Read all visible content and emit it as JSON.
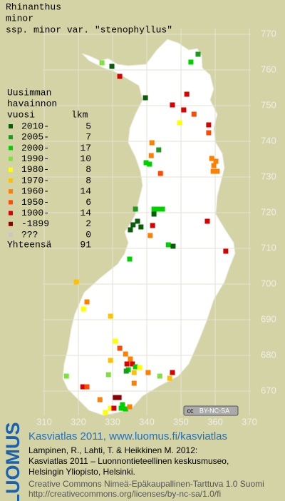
{
  "header": {
    "title_lines": [
      "Rhinanthus",
      "minor",
      "ssp. minor var. \"stenophyllus\""
    ]
  },
  "legend": {
    "heading_lines": [
      "Uusimman",
      "havainnon",
      "vuosi"
    ],
    "count_heading": "lkm",
    "rows": [
      {
        "label": "2010-",
        "count": 5,
        "color": "#0a5c0a"
      },
      {
        "label": "2005-",
        "count": 7,
        "color": "#1e9a1e"
      },
      {
        "label": "2000-",
        "count": 17,
        "color": "#00d000"
      },
      {
        "label": "1990-",
        "count": 10,
        "color": "#80e040"
      },
      {
        "label": "1980-",
        "count": 8,
        "color": "#ffff00"
      },
      {
        "label": "1970-",
        "count": 8,
        "color": "#ffc000"
      },
      {
        "label": "1960-",
        "count": 14,
        "color": "#ff8000"
      },
      {
        "label": "1950-",
        "count": 6,
        "color": "#ff4a00"
      },
      {
        "label": "1900-",
        "count": 14,
        "color": "#d80000"
      },
      {
        "label": "-1899",
        "count": 2,
        "color": "#8c0000"
      },
      {
        "label": "???",
        "count": 0,
        "color": "#c8c8c8"
      }
    ],
    "total_label": "Yhteensä",
    "total": 91
  },
  "map": {
    "xticks": [
      310,
      320,
      330,
      340,
      350,
      360,
      370
    ],
    "yticks": [
      670,
      680,
      690,
      700,
      710,
      720,
      730,
      740,
      750,
      760,
      770
    ],
    "points": [
      [
        326.9,
        762,
        3
      ],
      [
        329.8,
        761,
        0
      ],
      [
        332.1,
        758.2,
        8
      ],
      [
        355.0,
        764.4,
        1
      ],
      [
        352.9,
        762.2,
        2
      ],
      [
        339.6,
        752.2,
        0
      ],
      [
        351.7,
        753.2,
        8
      ],
      [
        347.5,
        750.2,
        8
      ],
      [
        350.8,
        748.8,
        8
      ],
      [
        353.8,
        747.6,
        7
      ],
      [
        349.6,
        745.2,
        4
      ],
      [
        358.1,
        744.6,
        8
      ],
      [
        358.1,
        742.4,
        7
      ],
      [
        341.5,
        739.6,
        6
      ],
      [
        343.5,
        737.6,
        1
      ],
      [
        341.3,
        736,
        6
      ],
      [
        339.8,
        734,
        2
      ],
      [
        340.8,
        733.6,
        2
      ],
      [
        359.0,
        735.2,
        6
      ],
      [
        360.2,
        734.4,
        6
      ],
      [
        359.6,
        733.2,
        6
      ],
      [
        360.6,
        731.6,
        6
      ],
      [
        359.4,
        731.6,
        6
      ],
      [
        344.0,
        731,
        7
      ],
      [
        342.1,
        721,
        2
      ],
      [
        343.3,
        721,
        2
      ],
      [
        344.6,
        721,
        2
      ],
      [
        342.1,
        719.6,
        0
      ],
      [
        336.7,
        721,
        1
      ],
      [
        337.3,
        717.6,
        0
      ],
      [
        336.0,
        716.6,
        0
      ],
      [
        335.2,
        715.2,
        0
      ],
      [
        338.3,
        716,
        0
      ],
      [
        341.0,
        713.6,
        6
      ],
      [
        341.7,
        716.4,
        8
      ],
      [
        346.3,
        711,
        2
      ],
      [
        347.7,
        710.6,
        0
      ],
      [
        357.7,
        717.6,
        8
      ],
      [
        363.1,
        709.2,
        8
      ],
      [
        335.0,
        707,
        2
      ],
      [
        319.4,
        700.6,
        5
      ],
      [
        322.5,
        695,
        6
      ],
      [
        321.5,
        693,
        4
      ],
      [
        329.4,
        691,
        5
      ],
      [
        330.8,
        684,
        4
      ],
      [
        332.1,
        682,
        7
      ],
      [
        333.8,
        680.4,
        6
      ],
      [
        335.2,
        679,
        6
      ],
      [
        334.2,
        677.6,
        8
      ],
      [
        335.8,
        677.6,
        8
      ],
      [
        334.6,
        676,
        2
      ],
      [
        334.0,
        675.6,
        1
      ],
      [
        336.7,
        676.8,
        2
      ],
      [
        336.3,
        675.2,
        5
      ],
      [
        337.9,
        676.6,
        4
      ],
      [
        329.4,
        678.6,
        5
      ],
      [
        316.5,
        674.2,
        3
      ],
      [
        328.8,
        674.6,
        3
      ],
      [
        336.3,
        672.2,
        6
      ],
      [
        340.4,
        675.2,
        6
      ],
      [
        347.5,
        675.2,
        8
      ],
      [
        343.8,
        674.2,
        3
      ],
      [
        346.7,
        673.6,
        5
      ],
      [
        321.3,
        671.2,
        8
      ],
      [
        322.5,
        671.2,
        7
      ],
      [
        330.8,
        668.2,
        9
      ],
      [
        331.9,
        668.2,
        9
      ],
      [
        326.3,
        667.6,
        6
      ],
      [
        332.9,
        666.2,
        2
      ],
      [
        332.5,
        665.2,
        2
      ],
      [
        329.4,
        665.2,
        4
      ],
      [
        330.4,
        665.2,
        8
      ],
      [
        333.8,
        665,
        2
      ],
      [
        335.0,
        665.6,
        6
      ],
      [
        327.9,
        664,
        4
      ]
    ]
  },
  "badge": {
    "icon": "cc",
    "text": "BY-NC-SA"
  },
  "footer": {
    "side_logo": "LUOMUS",
    "title": "Kasviatlas 2011, www.luomus.fi/kasviatlas",
    "citation_lines": [
      "Lampinen, R., Lahti, T. & Heikkinen M. 2012:",
      "Kasviatlas 2011 – Luonnontieteellinen keskusmuseo,",
      "Helsingin Yliopisto, Helsinki."
    ],
    "license_lines": [
      "Creative Commons Nimeä-Epäkaupallinen-Tarttuva 1.0 Suomi",
      "http://creativecommons.org/licenses/by-nc-sa/1.0/fi"
    ]
  }
}
